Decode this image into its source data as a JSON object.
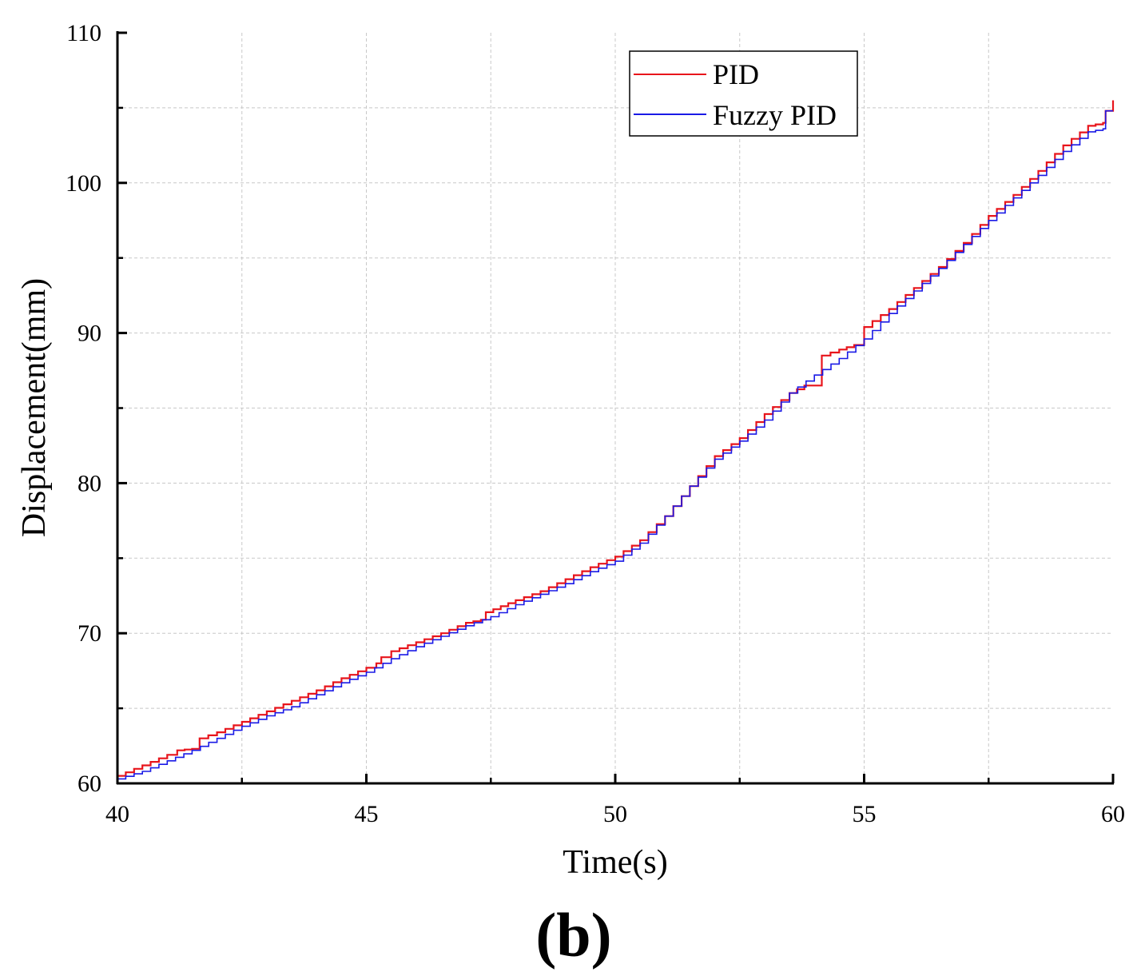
{
  "chart_data": {
    "type": "line",
    "xlabel": "Time(s)",
    "ylabel": "Displacement(mm)",
    "xlim": [
      40,
      60
    ],
    "ylim": [
      60,
      110
    ],
    "xticks": [
      40,
      45,
      50,
      55,
      60
    ],
    "yticks": [
      60,
      70,
      80,
      90,
      100,
      110
    ],
    "grid": true,
    "legend_position": "top-right",
    "panel_label": "(b)",
    "series": [
      {
        "name": "PID",
        "color": "#e8141b",
        "points": [
          [
            40.0,
            60.5
          ],
          [
            40.5,
            61.2
          ],
          [
            41.0,
            61.9
          ],
          [
            41.2,
            62.2
          ],
          [
            41.5,
            62.3
          ],
          [
            41.6,
            62.3
          ],
          [
            41.65,
            63.0
          ],
          [
            42.0,
            63.4
          ],
          [
            42.5,
            64.1
          ],
          [
            43.0,
            64.8
          ],
          [
            43.5,
            65.5
          ],
          [
            44.0,
            66.2
          ],
          [
            44.5,
            67.0
          ],
          [
            45.0,
            67.7
          ],
          [
            45.2,
            68.0
          ],
          [
            45.3,
            68.4
          ],
          [
            45.5,
            68.8
          ],
          [
            46.0,
            69.4
          ],
          [
            46.5,
            70.0
          ],
          [
            47.0,
            70.7
          ],
          [
            47.3,
            70.9
          ],
          [
            47.4,
            71.4
          ],
          [
            48.0,
            72.2
          ],
          [
            48.5,
            72.8
          ],
          [
            49.0,
            73.6
          ],
          [
            49.5,
            74.4
          ],
          [
            50.0,
            75.1
          ],
          [
            50.5,
            76.2
          ],
          [
            51.0,
            77.8
          ],
          [
            51.5,
            79.8
          ],
          [
            52.0,
            81.8
          ],
          [
            52.5,
            83.0
          ],
          [
            53.0,
            84.6
          ],
          [
            53.5,
            86.0
          ],
          [
            53.8,
            86.5
          ],
          [
            54.1,
            86.5
          ],
          [
            54.15,
            88.5
          ],
          [
            54.5,
            88.9
          ],
          [
            54.8,
            89.2
          ],
          [
            55.0,
            90.4
          ],
          [
            55.5,
            91.6
          ],
          [
            56.0,
            93.0
          ],
          [
            56.5,
            94.4
          ],
          [
            57.0,
            96.0
          ],
          [
            57.5,
            97.8
          ],
          [
            58.0,
            99.2
          ],
          [
            58.5,
            100.8
          ],
          [
            59.0,
            102.5
          ],
          [
            59.5,
            103.8
          ],
          [
            59.8,
            104.0
          ],
          [
            59.85,
            104.8
          ],
          [
            60.0,
            105.5
          ]
        ]
      },
      {
        "name": "Fuzzy PID",
        "color": "#1a1ae6",
        "points": [
          [
            40.0,
            60.3
          ],
          [
            40.5,
            60.8
          ],
          [
            41.0,
            61.5
          ],
          [
            41.5,
            62.2
          ],
          [
            42.0,
            63.0
          ],
          [
            42.5,
            63.8
          ],
          [
            43.0,
            64.5
          ],
          [
            43.5,
            65.1
          ],
          [
            44.0,
            65.9
          ],
          [
            44.5,
            66.7
          ],
          [
            45.0,
            67.4
          ],
          [
            45.5,
            68.3
          ],
          [
            46.0,
            69.1
          ],
          [
            46.5,
            69.8
          ],
          [
            47.0,
            70.5
          ],
          [
            47.5,
            71.1
          ],
          [
            48.0,
            71.9
          ],
          [
            48.5,
            72.6
          ],
          [
            49.0,
            73.3
          ],
          [
            49.5,
            74.1
          ],
          [
            50.0,
            74.8
          ],
          [
            50.5,
            76.0
          ],
          [
            51.0,
            77.8
          ],
          [
            51.5,
            79.8
          ],
          [
            52.0,
            81.6
          ],
          [
            52.5,
            82.8
          ],
          [
            53.0,
            84.2
          ],
          [
            53.5,
            86.0
          ],
          [
            54.0,
            87.2
          ],
          [
            54.5,
            88.3
          ],
          [
            55.0,
            89.6
          ],
          [
            55.5,
            91.3
          ],
          [
            56.0,
            92.8
          ],
          [
            56.5,
            94.3
          ],
          [
            57.0,
            95.9
          ],
          [
            57.5,
            97.5
          ],
          [
            58.0,
            99.0
          ],
          [
            58.5,
            100.5
          ],
          [
            59.0,
            102.1
          ],
          [
            59.5,
            103.4
          ],
          [
            59.8,
            103.6
          ],
          [
            59.85,
            104.8
          ],
          [
            60.0,
            104.8
          ]
        ]
      }
    ]
  }
}
